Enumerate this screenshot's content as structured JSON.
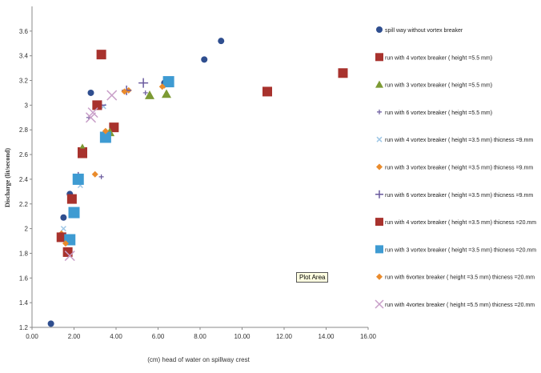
{
  "tooltip": "Plot Area",
  "colors": {
    "blue": "#2f4e8f",
    "red": "#a8322d",
    "green": "#7c9a34",
    "purple": "#6a5a9e",
    "teal": "#3e9bd2",
    "orange": "#ea8b2c",
    "lightblue": "#9fc7e6",
    "pink": "#c9a0c9"
  },
  "chart_data": {
    "type": "scatter",
    "xlabel": "(cm) head of water on spillway crest",
    "ylabel": "Discharge (lit/second)",
    "xlim": [
      0,
      16
    ],
    "ylim": [
      1.2,
      3.8
    ],
    "x_ticks": [
      "0.00",
      "2.00",
      "4.00",
      "6.00",
      "8.00",
      "10.00",
      "12.00",
      "14.00",
      "16.00"
    ],
    "y_ticks": [
      "1.2",
      "1.4",
      "1.6",
      "1.8",
      "2",
      "2.2",
      "2.4",
      "2.6",
      "2.8",
      "3",
      "3.2",
      "3.4",
      "3.6"
    ],
    "grid": false,
    "legend_position": "right",
    "series": [
      {
        "name": "spill way without vortex breaker",
        "marker": "circle",
        "color": "blue",
        "size": 4,
        "points": [
          [
            0.9,
            1.23
          ],
          [
            1.5,
            2.09
          ],
          [
            1.8,
            2.28
          ],
          [
            2.8,
            3.1
          ],
          [
            8.2,
            3.37
          ],
          [
            9.0,
            3.52
          ],
          [
            6.3,
            3.18
          ]
        ]
      },
      {
        "name": "run with 4 vortex breaker ( height =5.5 mm)",
        "marker": "square",
        "color": "red",
        "size": 6,
        "points": [
          [
            3.3,
            3.41
          ],
          [
            11.2,
            3.11
          ],
          [
            14.8,
            3.26
          ],
          [
            2.4,
            2.62
          ],
          [
            3.9,
            2.82
          ],
          [
            1.9,
            2.24
          ]
        ]
      },
      {
        "name": "run with 3 vortex breaker ( height =5.5 mm)",
        "marker": "triangle",
        "color": "green",
        "size": 6,
        "points": [
          [
            5.6,
            3.08
          ],
          [
            6.4,
            3.09
          ],
          [
            2.4,
            2.65
          ],
          [
            3.7,
            2.78
          ]
        ]
      },
      {
        "name": "run with 6 vortex breaker ( height =5.5 mm)",
        "marker": "cross",
        "color": "purple",
        "size": 3,
        "points": [
          [
            1.6,
            1.95
          ],
          [
            2.7,
            2.9
          ],
          [
            3.3,
            2.42
          ],
          [
            5.4,
            3.1
          ]
        ]
      },
      {
        "name": "run with 4 vortex breaker ( height =3.5 mm) thicness =9.mm",
        "marker": "x",
        "color": "lightblue",
        "size": 3,
        "points": [
          [
            1.5,
            2.0
          ],
          [
            2.3,
            2.35
          ],
          [
            3.4,
            2.99
          ]
        ]
      },
      {
        "name": "run with 3 vortex breaker ( height =3.5 mm) thicness =9.mm",
        "marker": "diamond",
        "color": "orange",
        "size": 4,
        "points": [
          [
            1.4,
            1.96
          ],
          [
            3.0,
            2.44
          ],
          [
            4.6,
            3.12
          ],
          [
            6.3,
            3.16
          ]
        ]
      },
      {
        "name": "run with 6 vortex breaker ( height =3.5 mm) thicness =9.mm",
        "marker": "plus",
        "color": "purple",
        "size": 6,
        "points": [
          [
            5.3,
            3.18
          ],
          [
            4.5,
            3.12
          ],
          [
            3.3,
            3.0
          ],
          [
            2.2,
            2.42
          ]
        ]
      },
      {
        "name": "run with 4 vortex breaker ( height =3.5 mm) thicness =20.mm",
        "marker": "square",
        "color": "red",
        "size": 6,
        "points": [
          [
            1.4,
            1.93
          ],
          [
            1.7,
            1.81
          ],
          [
            3.1,
            3.0
          ],
          [
            2.4,
            2.61
          ]
        ]
      },
      {
        "name": "run with 3 vortex breaker ( height =3.5 mm) thicness =20.mm",
        "marker": "square",
        "color": "teal",
        "size": 7,
        "points": [
          [
            1.8,
            1.91
          ],
          [
            2.0,
            2.13
          ],
          [
            2.2,
            2.4
          ],
          [
            3.5,
            2.74
          ],
          [
            6.5,
            3.19
          ]
        ]
      },
      {
        "name": "run with 6vortex breaker ( height =3.5 mm) thicness =20.mm",
        "marker": "diamond",
        "color": "orange",
        "size": 4,
        "points": [
          [
            1.6,
            1.88
          ],
          [
            3.5,
            2.79
          ],
          [
            4.4,
            3.11
          ],
          [
            6.2,
            3.15
          ]
        ]
      },
      {
        "name": "run with 4vortex breaker ( height =5.5 mm) thicness =20.mm",
        "marker": "x",
        "color": "pink",
        "size": 6,
        "points": [
          [
            1.8,
            1.78
          ],
          [
            2.8,
            2.9
          ],
          [
            3.8,
            3.08
          ],
          [
            2.9,
            2.94
          ]
        ]
      }
    ]
  }
}
